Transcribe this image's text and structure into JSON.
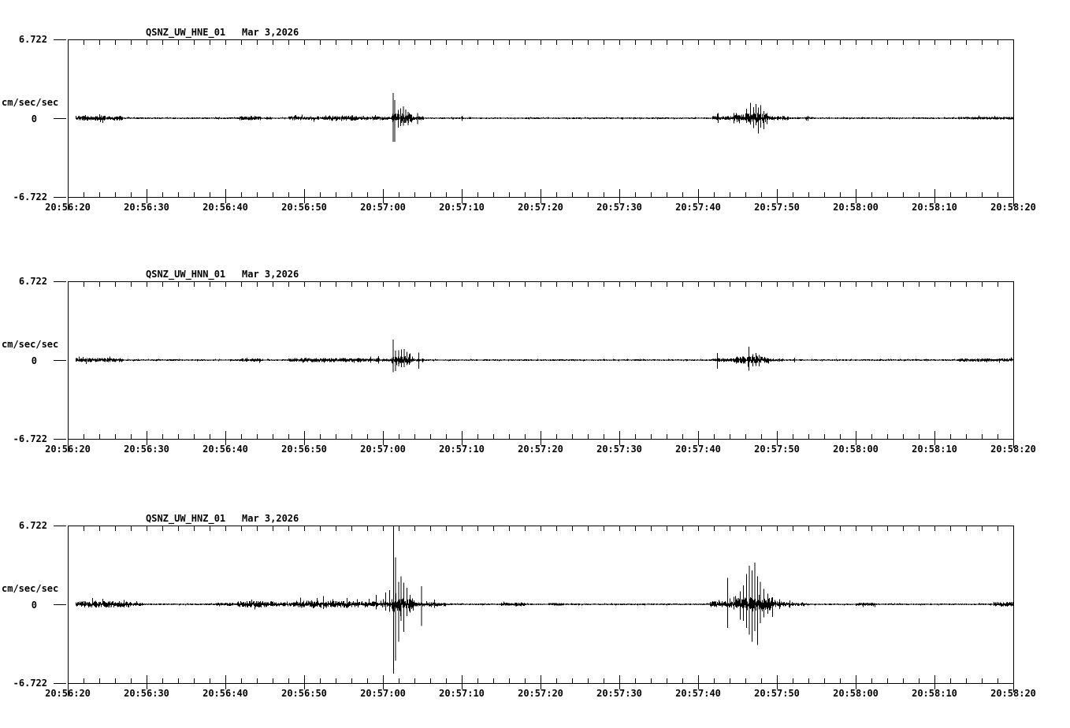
{
  "colors": {
    "background": "#ffffff",
    "trace": "#000000",
    "text": "#000000"
  },
  "amplitude_axis": {
    "top_label": "6.722",
    "zero_label": "0",
    "bottom_label": "-6.722",
    "units_label": "cm/sec/sec",
    "max": 6.722
  },
  "time_axis": {
    "start": "20:56:20",
    "end": "20:58:20",
    "span_seconds": 120,
    "major_step_seconds": 10,
    "minor_step_seconds": 2,
    "labels": [
      "20:56:20",
      "20:56:30",
      "20:56:40",
      "20:56:50",
      "20:57:00",
      "20:57:10",
      "20:57:20",
      "20:57:30",
      "20:57:40",
      "20:57:50",
      "20:58:00",
      "20:58:10",
      "20:58:20"
    ]
  },
  "panels": [
    {
      "station": "QSNZ_UW_HNE_01",
      "date": "Mar 3,2026"
    },
    {
      "station": "QSNZ_UW_HNN_01",
      "date": "Mar 3,2026"
    },
    {
      "station": "QSNZ_UW_HNZ_01",
      "date": "Mar 3,2026"
    }
  ],
  "chart_data": [
    {
      "type": "line",
      "title": "QSNZ_UW_HNE_01  Mar 3,2026",
      "ylabel": "cm/sec/sec",
      "ylim": [
        -6.722,
        6.722
      ],
      "x_start_label": "20:56:20",
      "x_end_label": "20:58:20",
      "x_unit": "seconds after 20:56:20",
      "noise_bands": [
        {
          "t0": 1,
          "t1": 7,
          "amp": 0.17
        },
        {
          "t0": 18.8,
          "t1": 19.2,
          "amp": 0.08
        },
        {
          "t0": 21.8,
          "t1": 24.5,
          "amp": 0.13
        },
        {
          "t0": 25.2,
          "t1": 25.9,
          "amp": 0.08
        },
        {
          "t0": 28,
          "t1": 33.5,
          "amp": 0.13
        },
        {
          "t0": 33.5,
          "t1": 37,
          "amp": 0.2
        },
        {
          "t0": 37,
          "t1": 41.1,
          "amp": 0.12
        },
        {
          "t0": 41.1,
          "t1": 43.8,
          "amp": 0.4
        },
        {
          "t0": 43.8,
          "t1": 45.2,
          "amp": 0.12
        },
        {
          "t0": 49.8,
          "t1": 50.3,
          "amp": 0.08
        },
        {
          "t0": 81.8,
          "t1": 84.5,
          "amp": 0.15
        },
        {
          "t0": 84.5,
          "t1": 89,
          "amp": 0.4
        },
        {
          "t0": 89,
          "t1": 91.5,
          "amp": 0.15
        },
        {
          "t0": 93.5,
          "t1": 94.5,
          "amp": 0.08
        },
        {
          "t0": 113,
          "t1": 120,
          "amp": 0.08
        }
      ],
      "spikes": [
        {
          "t": 41.25,
          "up": 2.15,
          "down": 2.0
        },
        {
          "t": 41.45,
          "up": 1.55,
          "down": 2.0
        },
        {
          "t": 41.9,
          "up": 0.7,
          "down": 0.8
        },
        {
          "t": 42.2,
          "up": 0.85,
          "down": 0.6
        },
        {
          "t": 42.55,
          "up": 1.0,
          "down": 0.65
        },
        {
          "t": 42.85,
          "up": 0.75,
          "down": 0.4
        },
        {
          "t": 43.15,
          "up": 0.55,
          "down": 0.6
        },
        {
          "t": 44.35,
          "up": 0.45,
          "down": 0.5
        },
        {
          "t": 50.0,
          "up": 0.2,
          "down": 0.25
        },
        {
          "t": 82.5,
          "up": 0.45,
          "down": 0.4
        },
        {
          "t": 86.1,
          "up": 0.8,
          "down": 0.4
        },
        {
          "t": 86.6,
          "up": 1.3,
          "down": 0.55
        },
        {
          "t": 87.0,
          "up": 0.95,
          "down": 0.85
        },
        {
          "t": 87.3,
          "up": 1.2,
          "down": 0.6
        },
        {
          "t": 87.6,
          "up": 0.9,
          "down": 1.3
        },
        {
          "t": 87.9,
          "up": 1.1,
          "down": 0.8
        },
        {
          "t": 88.3,
          "up": 0.6,
          "down": 0.95
        },
        {
          "t": 88.7,
          "up": 0.45,
          "down": 0.5
        },
        {
          "t": 93.9,
          "up": 0.2,
          "down": 0.25
        }
      ]
    },
    {
      "type": "line",
      "title": "QSNZ_UW_HNN_01  Mar 3,2026",
      "ylabel": "cm/sec/sec",
      "ylim": [
        -6.722,
        6.722
      ],
      "x_start_label": "20:56:20",
      "x_end_label": "20:58:20",
      "x_unit": "seconds after 20:56:20",
      "noise_bands": [
        {
          "t0": 1,
          "t1": 7,
          "amp": 0.14
        },
        {
          "t0": 21.8,
          "t1": 24.5,
          "amp": 0.11
        },
        {
          "t0": 28,
          "t1": 37,
          "amp": 0.14
        },
        {
          "t0": 37,
          "t1": 41.1,
          "amp": 0.1
        },
        {
          "t0": 41.1,
          "t1": 43.8,
          "amp": 0.3
        },
        {
          "t0": 43.8,
          "t1": 45.2,
          "amp": 0.1
        },
        {
          "t0": 81.8,
          "t1": 84.5,
          "amp": 0.12
        },
        {
          "t0": 84.5,
          "t1": 89,
          "amp": 0.28
        },
        {
          "t0": 89,
          "t1": 91,
          "amp": 0.1
        },
        {
          "t0": 113,
          "t1": 120,
          "amp": 0.1
        }
      ],
      "spikes": [
        {
          "t": 38.4,
          "up": 0.3,
          "down": 0.25
        },
        {
          "t": 39.4,
          "up": 0.35,
          "down": 0.3
        },
        {
          "t": 41.25,
          "up": 1.75,
          "down": 1.05
        },
        {
          "t": 41.55,
          "up": 0.8,
          "down": 0.95
        },
        {
          "t": 41.95,
          "up": 0.85,
          "down": 0.55
        },
        {
          "t": 42.3,
          "up": 0.9,
          "down": 0.6
        },
        {
          "t": 42.65,
          "up": 0.95,
          "down": 0.6
        },
        {
          "t": 43.0,
          "up": 0.7,
          "down": 0.45
        },
        {
          "t": 43.3,
          "up": 0.5,
          "down": 0.4
        },
        {
          "t": 44.5,
          "up": 0.65,
          "down": 0.75
        },
        {
          "t": 82.4,
          "up": 0.6,
          "down": 0.75
        },
        {
          "t": 86.4,
          "up": 1.15,
          "down": 0.9
        },
        {
          "t": 86.9,
          "up": 0.5,
          "down": 0.55
        },
        {
          "t": 87.3,
          "up": 0.6,
          "down": 0.5
        },
        {
          "t": 87.7,
          "up": 0.45,
          "down": 0.55
        },
        {
          "t": 92.2,
          "up": 0.2,
          "down": 0.2
        }
      ]
    },
    {
      "type": "line",
      "title": "QSNZ_UW_HNZ_01  Mar 3,2026",
      "ylabel": "cm/sec/sec",
      "ylim": [
        -6.722,
        6.722
      ],
      "x_start_label": "20:56:20",
      "x_end_label": "20:58:20",
      "x_unit": "seconds after 20:56:20",
      "noise_bands": [
        {
          "t0": 1,
          "t1": 8,
          "amp": 0.25
        },
        {
          "t0": 8,
          "t1": 9.5,
          "amp": 0.1
        },
        {
          "t0": 18.8,
          "t1": 21,
          "amp": 0.1
        },
        {
          "t0": 21.5,
          "t1": 26,
          "amp": 0.25
        },
        {
          "t0": 26,
          "t1": 29,
          "amp": 0.15
        },
        {
          "t0": 29,
          "t1": 34,
          "amp": 0.3
        },
        {
          "t0": 34,
          "t1": 38.5,
          "amp": 0.25
        },
        {
          "t0": 38.5,
          "t1": 41.1,
          "amp": 0.2
        },
        {
          "t0": 41.1,
          "t1": 44,
          "amp": 0.6
        },
        {
          "t0": 44,
          "t1": 48,
          "amp": 0.15
        },
        {
          "t0": 55,
          "t1": 58,
          "amp": 0.12
        },
        {
          "t0": 61,
          "t1": 63,
          "amp": 0.08
        },
        {
          "t0": 81.5,
          "t1": 84.5,
          "amp": 0.25
        },
        {
          "t0": 84.5,
          "t1": 89.5,
          "amp": 0.6
        },
        {
          "t0": 89.5,
          "t1": 92,
          "amp": 0.2
        },
        {
          "t0": 92,
          "t1": 94,
          "amp": 0.12
        },
        {
          "t0": 100,
          "t1": 102.5,
          "amp": 0.1
        },
        {
          "t0": 117.5,
          "t1": 120,
          "amp": 0.16
        }
      ],
      "spikes": [
        {
          "t": 32.4,
          "up": 0.7,
          "down": 0.4
        },
        {
          "t": 35.4,
          "up": 0.55,
          "down": 0.35
        },
        {
          "t": 39.1,
          "up": 0.8,
          "down": 0.45
        },
        {
          "t": 40.3,
          "up": 1.0,
          "down": 0.55
        },
        {
          "t": 40.8,
          "up": 1.2,
          "down": 0.65
        },
        {
          "t": 41.3,
          "up": 6.722,
          "down": 5.9
        },
        {
          "t": 41.55,
          "up": 4.0,
          "down": 4.8
        },
        {
          "t": 41.95,
          "up": 1.9,
          "down": 3.2
        },
        {
          "t": 42.25,
          "up": 2.4,
          "down": 1.4
        },
        {
          "t": 42.6,
          "up": 1.85,
          "down": 2.35
        },
        {
          "t": 43.0,
          "up": 1.4,
          "down": 1.0
        },
        {
          "t": 43.4,
          "up": 0.8,
          "down": 0.7
        },
        {
          "t": 44.85,
          "up": 1.55,
          "down": 1.85
        },
        {
          "t": 46.5,
          "up": 0.4,
          "down": 0.3
        },
        {
          "t": 83.7,
          "up": 2.25,
          "down": 2.0
        },
        {
          "t": 85.3,
          "up": 1.1,
          "down": 1.3
        },
        {
          "t": 85.7,
          "up": 1.6,
          "down": 1.4
        },
        {
          "t": 86.1,
          "up": 2.6,
          "down": 2.0
        },
        {
          "t": 86.45,
          "up": 3.3,
          "down": 2.6
        },
        {
          "t": 86.8,
          "up": 2.9,
          "down": 3.2
        },
        {
          "t": 87.15,
          "up": 3.55,
          "down": 2.3
        },
        {
          "t": 87.5,
          "up": 2.4,
          "down": 3.45
        },
        {
          "t": 87.85,
          "up": 1.9,
          "down": 1.6
        },
        {
          "t": 88.3,
          "up": 1.3,
          "down": 1.1
        },
        {
          "t": 88.8,
          "up": 0.9,
          "down": 0.8
        },
        {
          "t": 89.4,
          "up": 0.6,
          "down": 0.55
        },
        {
          "t": 90.3,
          "up": 0.45,
          "down": 0.4
        },
        {
          "t": 91.6,
          "up": 0.35,
          "down": 0.3
        }
      ]
    }
  ]
}
